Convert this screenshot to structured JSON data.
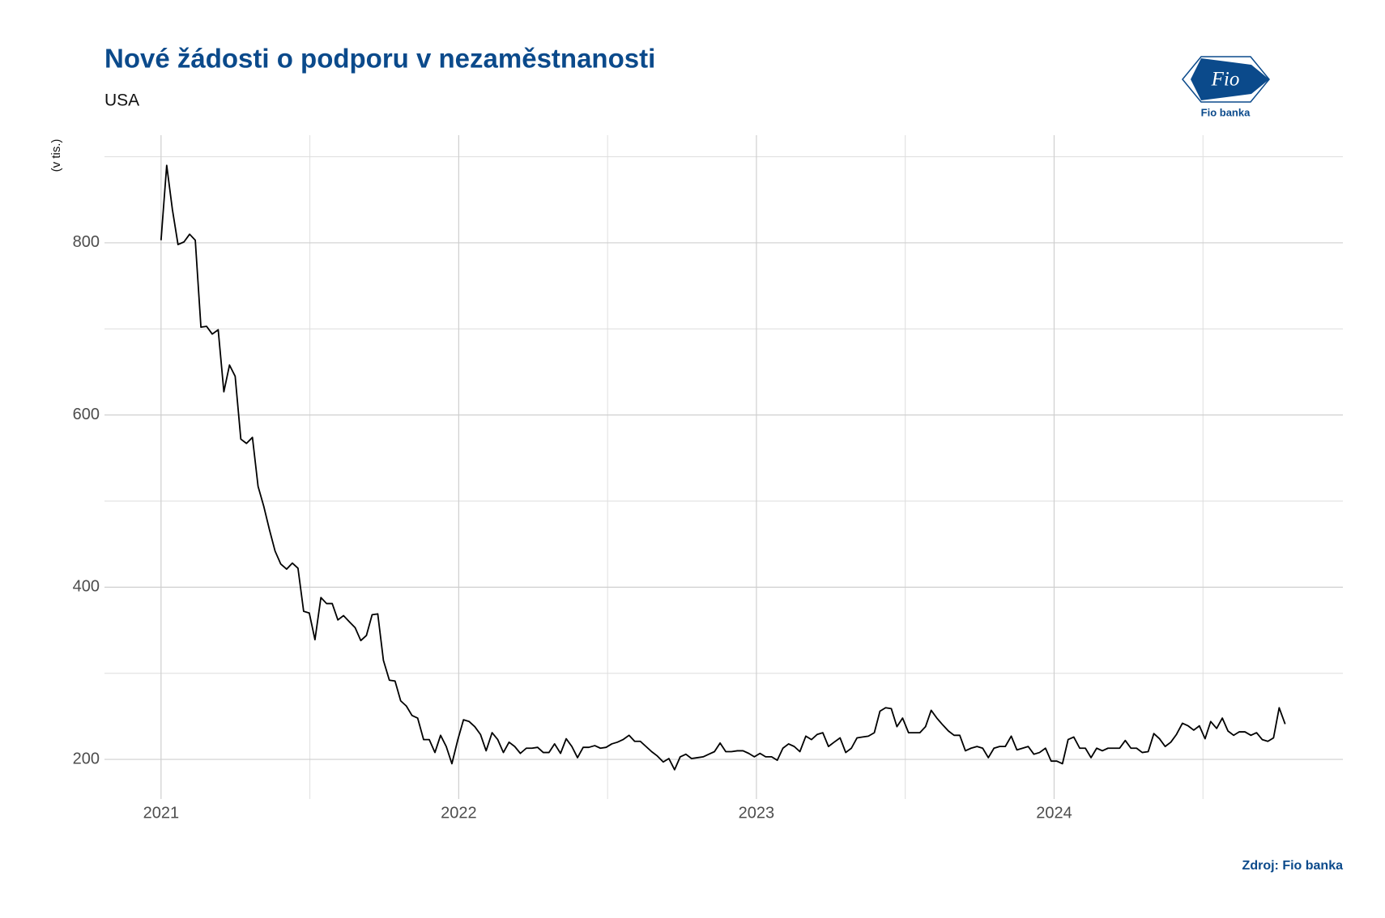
{
  "chart_data": {
    "type": "line",
    "title": "Nové žádosti o podporu v nezaměstnanosti",
    "subtitle": "USA",
    "y_label": "(v tis.)",
    "source": "Zdroj: Fio banka",
    "logo": {
      "mark": "Fio",
      "name": "Fio banka"
    },
    "xlim": [
      2020.81,
      2024.97
    ],
    "xticks": [
      2021,
      2022,
      2023,
      2024
    ],
    "x_minor_grid": [
      2021.5,
      2022.5,
      2023.5,
      2024.5
    ],
    "ylim": [
      154,
      925
    ],
    "yticks": [
      200,
      400,
      600,
      800
    ],
    "y_minor_grid": [
      300,
      500,
      700,
      900
    ],
    "grid": true,
    "x": [
      2021.0,
      2021.019,
      2021.038,
      2021.057,
      2021.077,
      2021.096,
      2021.115,
      2021.134,
      2021.153,
      2021.172,
      2021.192,
      2021.211,
      2021.23,
      2021.249,
      2021.268,
      2021.287,
      2021.307,
      2021.326,
      2021.345,
      2021.364,
      2021.383,
      2021.402,
      2021.422,
      2021.441,
      2021.46,
      2021.479,
      2021.498,
      2021.517,
      2021.537,
      2021.556,
      2021.575,
      2021.594,
      2021.613,
      2021.632,
      2021.652,
      2021.671,
      2021.69,
      2021.709,
      2021.728,
      2021.747,
      2021.767,
      2021.786,
      2021.805,
      2021.824,
      2021.843,
      2021.862,
      2021.882,
      2021.901,
      2021.92,
      2021.939,
      2021.958,
      2021.977,
      2021.997,
      2022.016,
      2022.035,
      2022.054,
      2022.073,
      2022.092,
      2022.112,
      2022.131,
      2022.15,
      2022.169,
      2022.188,
      2022.207,
      2022.227,
      2022.246,
      2022.265,
      2022.284,
      2022.303,
      2022.322,
      2022.342,
      2022.361,
      2022.38,
      2022.399,
      2022.418,
      2022.437,
      2022.457,
      2022.476,
      2022.495,
      2022.514,
      2022.533,
      2022.552,
      2022.572,
      2022.591,
      2022.61,
      2022.629,
      2022.648,
      2022.667,
      2022.687,
      2022.706,
      2022.725,
      2022.744,
      2022.763,
      2022.782,
      2022.802,
      2022.821,
      2022.84,
      2022.859,
      2022.878,
      2022.897,
      2022.916,
      2022.936,
      2022.955,
      2022.974,
      2022.993,
      2023.012,
      2023.031,
      2023.051,
      2023.07,
      2023.089,
      2023.108,
      2023.127,
      2023.146,
      2023.166,
      2023.185,
      2023.204,
      2023.223,
      2023.242,
      2023.261,
      2023.281,
      2023.3,
      2023.319,
      2023.338,
      2023.357,
      2023.376,
      2023.396,
      2023.415,
      2023.434,
      2023.453,
      2023.472,
      2023.491,
      2023.511,
      2023.53,
      2023.549,
      2023.568,
      2023.587,
      2023.606,
      2023.626,
      2023.645,
      2023.664,
      2023.683,
      2023.702,
      2023.721,
      2023.741,
      2023.76,
      2023.779,
      2023.798,
      2023.817,
      2023.836,
      2023.856,
      2023.875,
      2023.894,
      2023.913,
      2023.932,
      2023.951,
      2023.971,
      2023.99,
      2024.009,
      2024.028,
      2024.047,
      2024.066,
      2024.086,
      2024.105,
      2024.124,
      2024.143,
      2024.162,
      2024.181,
      2024.201,
      2024.22,
      2024.239,
      2024.258,
      2024.277,
      2024.296,
      2024.316,
      2024.335,
      2024.354,
      2024.373,
      2024.392,
      2024.411,
      2024.431,
      2024.45,
      2024.469,
      2024.488,
      2024.507,
      2024.526,
      2024.546,
      2024.565,
      2024.584,
      2024.603,
      2024.622,
      2024.641,
      2024.661,
      2024.68,
      2024.699,
      2024.718,
      2024.737,
      2024.756,
      2024.776
    ],
    "series": [
      {
        "color": "#000000",
        "values": [
          803,
          890,
          839,
          798,
          801,
          810,
          803,
          702,
          703,
          694,
          699,
          627,
          658,
          645,
          572,
          567,
          574,
          517,
          494,
          467,
          442,
          427,
          421,
          428,
          422,
          372,
          370,
          339,
          388,
          381,
          381,
          362,
          367,
          360,
          353,
          338,
          344,
          368,
          369,
          315,
          292,
          291,
          268,
          262,
          251,
          248,
          223,
          223,
          208,
          228,
          215,
          195,
          223,
          246,
          244,
          238,
          229,
          210,
          231,
          223,
          208,
          220,
          215,
          207,
          213,
          213,
          214,
          208,
          208,
          218,
          207,
          224,
          215,
          202,
          214,
          214,
          216,
          213,
          214,
          218,
          220,
          223,
          228,
          221,
          221,
          215,
          209,
          204,
          197,
          201,
          188,
          203,
          206,
          201,
          202,
          203,
          206,
          209,
          219,
          209,
          209,
          210,
          210,
          207,
          203,
          207,
          203,
          203,
          199,
          213,
          218,
          215,
          209,
          227,
          223,
          229,
          231,
          215,
          220,
          225,
          208,
          213,
          225,
          226,
          227,
          231,
          256,
          260,
          259,
          238,
          248,
          231,
          231,
          231,
          238,
          257,
          248,
          240,
          233,
          228,
          228,
          210,
          213,
          215,
          213,
          202,
          213,
          215,
          215,
          227,
          211,
          213,
          215,
          206,
          208,
          213,
          198,
          198,
          195,
          223,
          226,
          213,
          213,
          202,
          213,
          210,
          213,
          213,
          213,
          222,
          213,
          213,
          208,
          209,
          230,
          224,
          215,
          220,
          229,
          242,
          239,
          234,
          239,
          224,
          244,
          236,
          248,
          233,
          228,
          232,
          232,
          228,
          231,
          223,
          221,
          225,
          260,
          241
        ]
      }
    ]
  }
}
